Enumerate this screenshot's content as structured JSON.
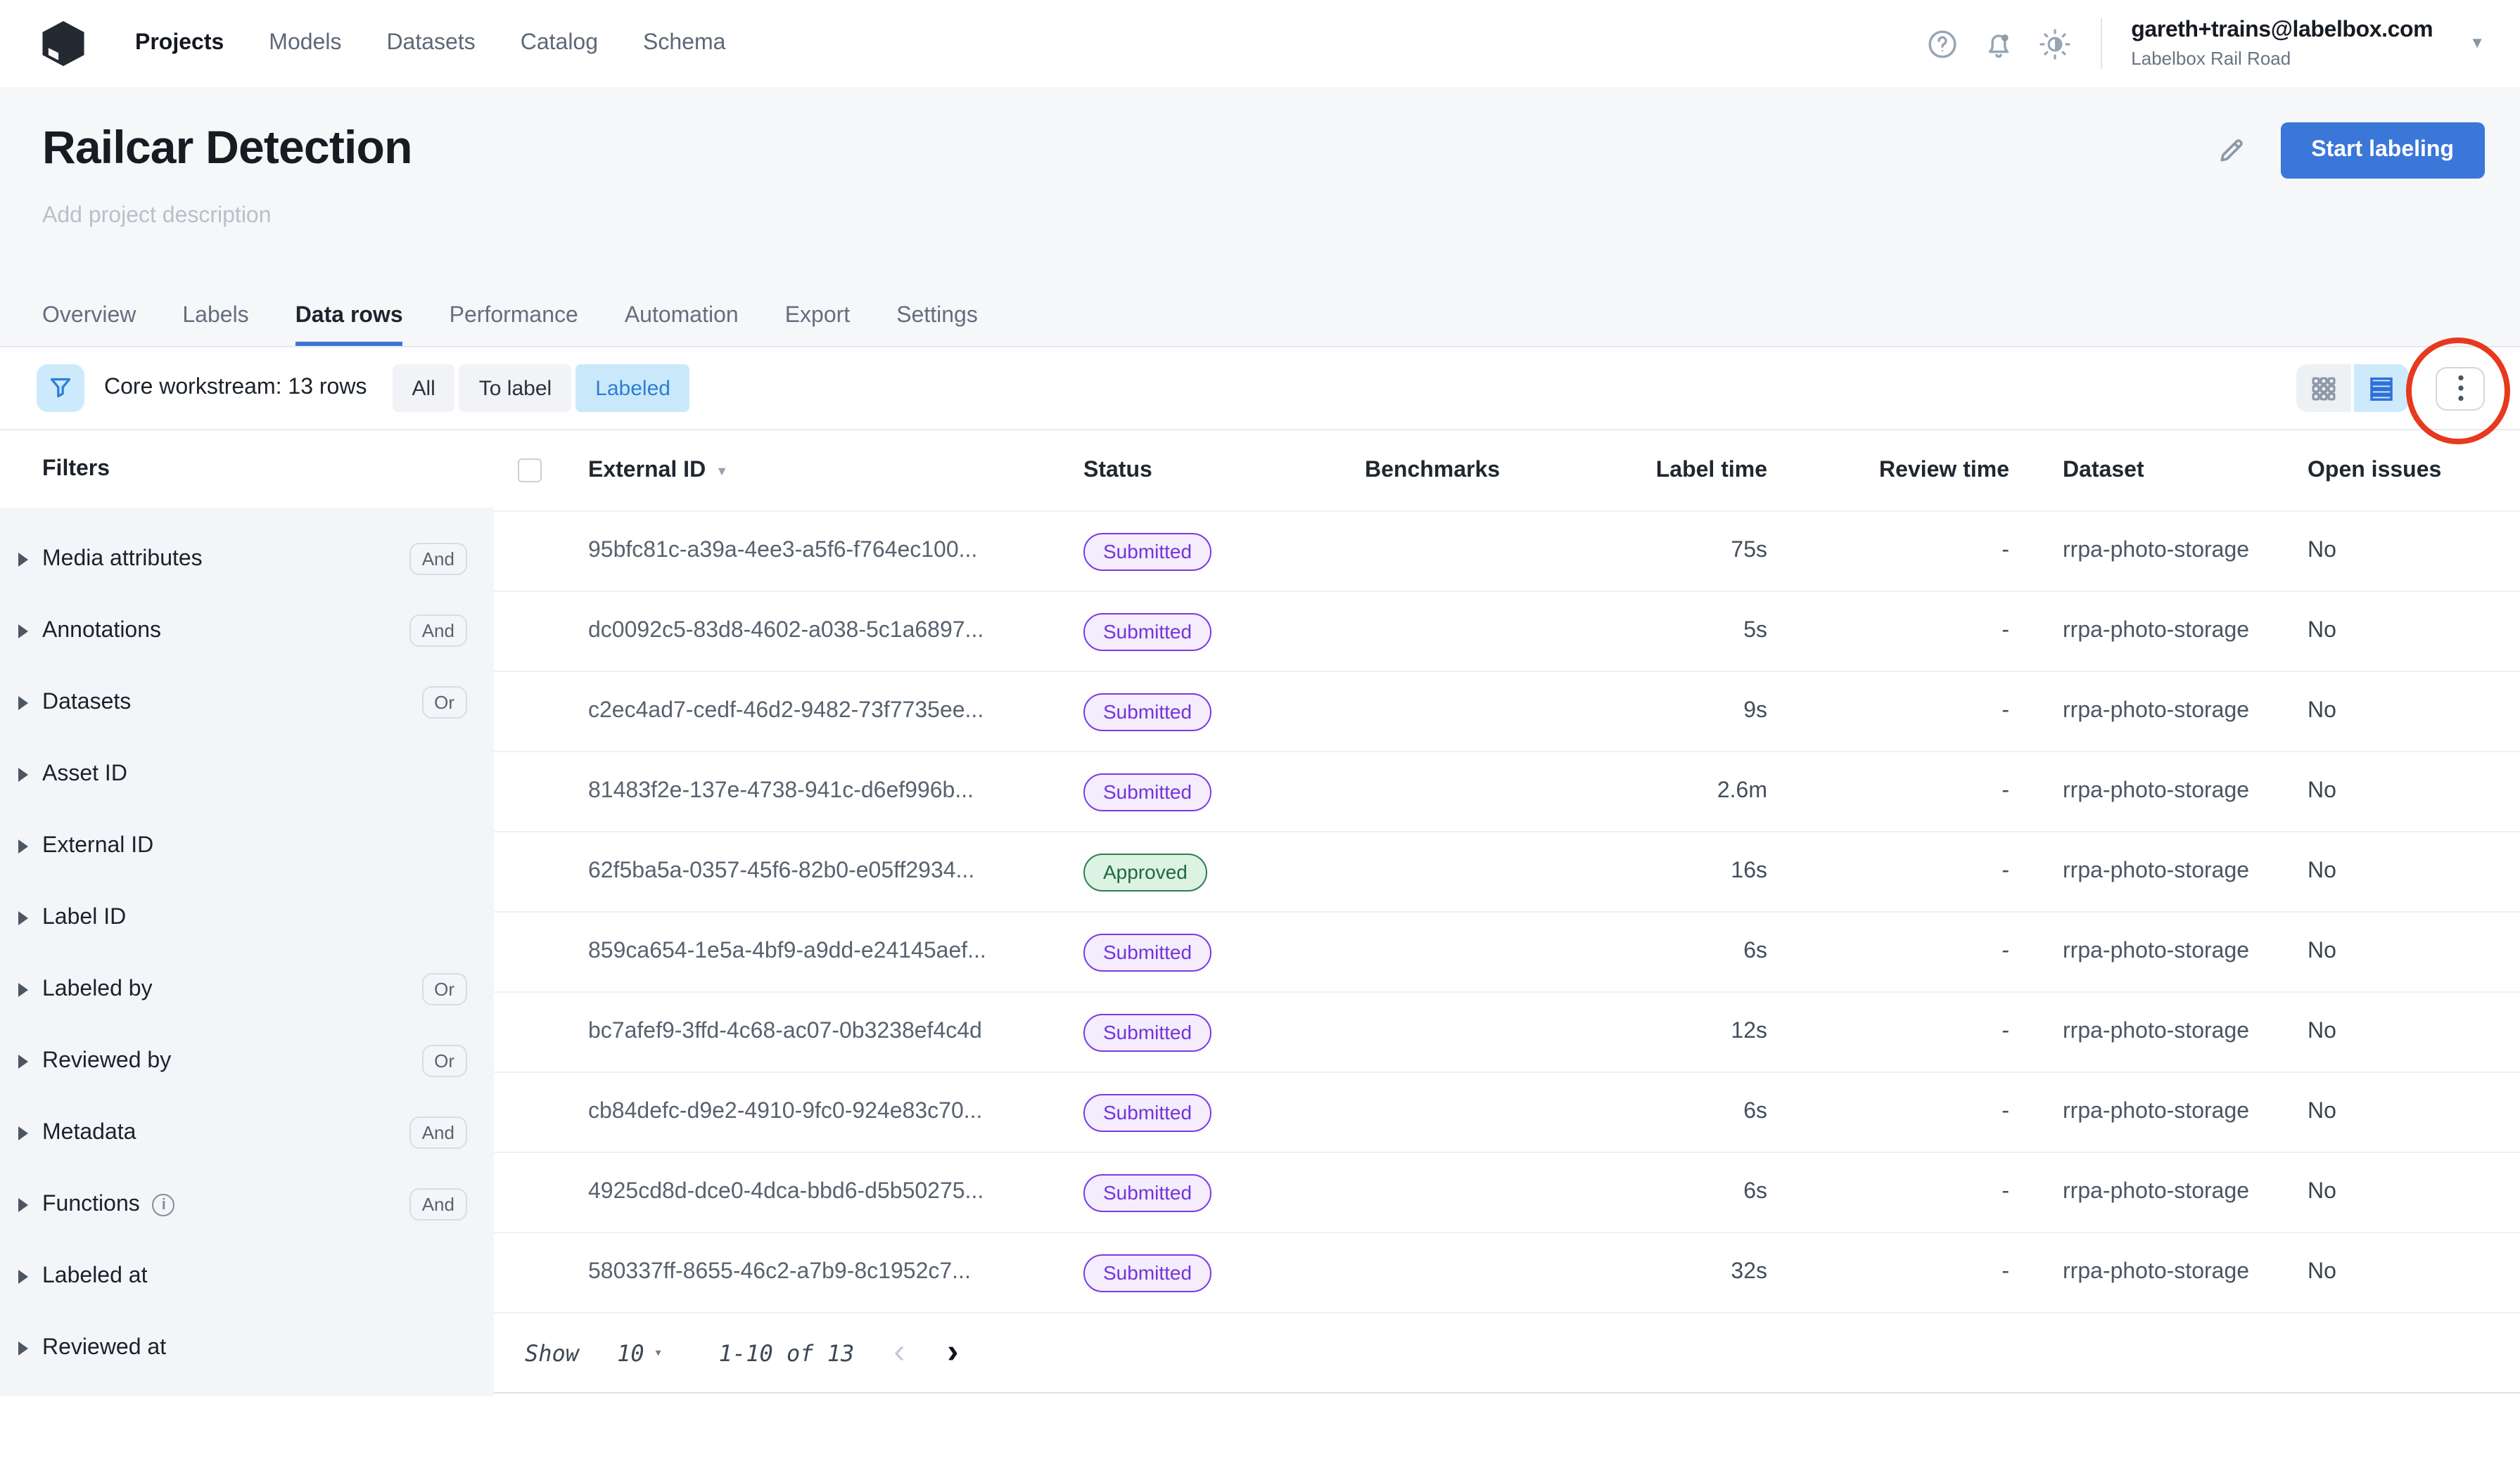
{
  "nav": {
    "items": [
      "Projects",
      "Models",
      "Datasets",
      "Catalog",
      "Schema"
    ],
    "active": "Projects"
  },
  "account": {
    "email": "gareth+trains@labelbox.com",
    "org": "Labelbox Rail Road"
  },
  "header": {
    "title": "Railcar Detection",
    "description_placeholder": "Add project description",
    "start_labeling": "Start labeling"
  },
  "tabs": {
    "items": [
      "Overview",
      "Labels",
      "Data rows",
      "Performance",
      "Automation",
      "Export",
      "Settings"
    ],
    "active": "Data rows"
  },
  "toolbar": {
    "workstream": "Core workstream: 13 rows",
    "filters": [
      "All",
      "To label",
      "Labeled"
    ],
    "active_filter": "Labeled"
  },
  "sidebar": {
    "title": "Filters",
    "items": [
      {
        "label": "Media attributes",
        "operator": "And",
        "info": false
      },
      {
        "label": "Annotations",
        "operator": "And",
        "info": false
      },
      {
        "label": "Datasets",
        "operator": "Or",
        "info": false
      },
      {
        "label": "Asset ID",
        "operator": "",
        "info": false
      },
      {
        "label": "External ID",
        "operator": "",
        "info": false
      },
      {
        "label": "Label ID",
        "operator": "",
        "info": false
      },
      {
        "label": "Labeled by",
        "operator": "Or",
        "info": false
      },
      {
        "label": "Reviewed by",
        "operator": "Or",
        "info": false
      },
      {
        "label": "Metadata",
        "operator": "And",
        "info": false
      },
      {
        "label": "Functions",
        "operator": "And",
        "info": true
      },
      {
        "label": "Labeled at",
        "operator": "",
        "info": false
      },
      {
        "label": "Reviewed at",
        "operator": "",
        "info": false
      }
    ]
  },
  "table": {
    "columns": [
      "External ID",
      "Status",
      "Benchmarks",
      "Label time",
      "Review time",
      "Dataset",
      "Open issues"
    ],
    "rows": [
      {
        "external_id": "95bfc81c-a39a-4ee3-a5f6-f764ec100...",
        "status": "Submitted",
        "benchmarks": "",
        "label_time": "75s",
        "review_time": "-",
        "dataset": "rrpa-photo-storage",
        "open_issues": "No"
      },
      {
        "external_id": "dc0092c5-83d8-4602-a038-5c1a6897...",
        "status": "Submitted",
        "benchmarks": "",
        "label_time": "5s",
        "review_time": "-",
        "dataset": "rrpa-photo-storage",
        "open_issues": "No"
      },
      {
        "external_id": "c2ec4ad7-cedf-46d2-9482-73f7735ee...",
        "status": "Submitted",
        "benchmarks": "",
        "label_time": "9s",
        "review_time": "-",
        "dataset": "rrpa-photo-storage",
        "open_issues": "No"
      },
      {
        "external_id": "81483f2e-137e-4738-941c-d6ef996b...",
        "status": "Submitted",
        "benchmarks": "",
        "label_time": "2.6m",
        "review_time": "-",
        "dataset": "rrpa-photo-storage",
        "open_issues": "No"
      },
      {
        "external_id": "62f5ba5a-0357-45f6-82b0-e05ff2934...",
        "status": "Approved",
        "benchmarks": "",
        "label_time": "16s",
        "review_time": "-",
        "dataset": "rrpa-photo-storage",
        "open_issues": "No"
      },
      {
        "external_id": "859ca654-1e5a-4bf9-a9dd-e24145aef...",
        "status": "Submitted",
        "benchmarks": "",
        "label_time": "6s",
        "review_time": "-",
        "dataset": "rrpa-photo-storage",
        "open_issues": "No"
      },
      {
        "external_id": "bc7afef9-3ffd-4c68-ac07-0b3238ef4c4d",
        "status": "Submitted",
        "benchmarks": "",
        "label_time": "12s",
        "review_time": "-",
        "dataset": "rrpa-photo-storage",
        "open_issues": "No"
      },
      {
        "external_id": "cb84defc-d9e2-4910-9fc0-924e83c70...",
        "status": "Submitted",
        "benchmarks": "",
        "label_time": "6s",
        "review_time": "-",
        "dataset": "rrpa-photo-storage",
        "open_issues": "No"
      },
      {
        "external_id": "4925cd8d-dce0-4dca-bbd6-d5b50275...",
        "status": "Submitted",
        "benchmarks": "",
        "label_time": "6s",
        "review_time": "-",
        "dataset": "rrpa-photo-storage",
        "open_issues": "No"
      },
      {
        "external_id": "580337ff-8655-46c2-a7b9-8c1952c7...",
        "status": "Submitted",
        "benchmarks": "",
        "label_time": "32s",
        "review_time": "-",
        "dataset": "rrpa-photo-storage",
        "open_issues": "No"
      }
    ]
  },
  "pagination": {
    "show_label": "Show",
    "page_size": "10",
    "range": "1-10 of 13",
    "prev": "‹",
    "next": "›"
  },
  "icons": {
    "sort_desc": "▼",
    "account_caret": "▼",
    "page_size_caret": "▾",
    "info": "i"
  },
  "colors": {
    "accent_blue": "#3b76d9",
    "chip_blue_bg": "#c9e9fb",
    "chip_blue_text": "#2e7dd4",
    "submitted_purple": "#7b3ae0",
    "submitted_bg": "#f3edfd",
    "approved_green": "#2e7d4f",
    "approved_bg": "#dcf2e3",
    "annotation_red": "#e6391d",
    "hero_bg": "#f6f7f9",
    "sidebar_bg": "#f4f5f8"
  }
}
